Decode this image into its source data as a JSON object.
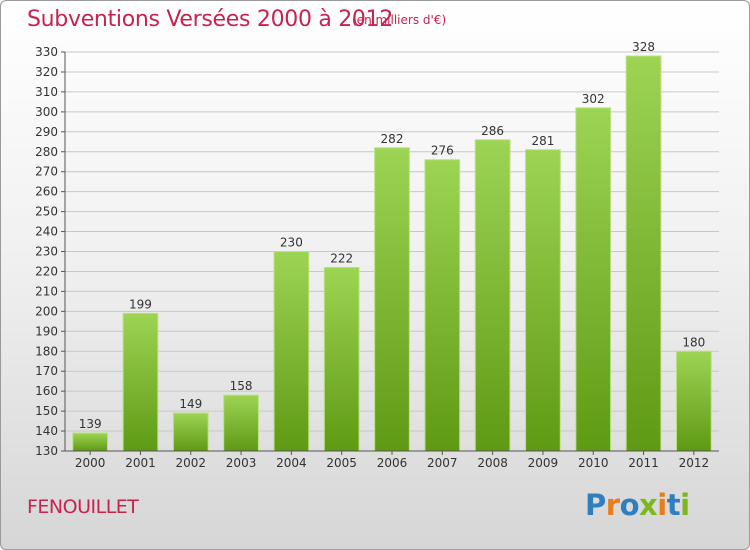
{
  "header": {
    "title": "Subventions Versées 2000 à 2012",
    "unit": "(en milliers d'€)"
  },
  "footer": {
    "commune": "FENOUILLET",
    "logo_text": "Proxiti"
  },
  "colors": {
    "title": "#c8224f",
    "bar_top": "#9dd454",
    "bar_bottom": "#5f9a14",
    "gridline": "#c8c8c8",
    "logo_letters": [
      "#2f7fc0",
      "#e77e1e",
      "#2f7fc0",
      "#7ab81e",
      "#e77e1e",
      "#2f7fc0",
      "#7ab81e"
    ]
  },
  "chart_data": {
    "type": "bar",
    "title": "Subventions Versées 2000 à 2012",
    "subtitle": "(en milliers d'€)",
    "categories": [
      "2000",
      "2001",
      "2002",
      "2003",
      "2004",
      "2005",
      "2006",
      "2007",
      "2008",
      "2009",
      "2010",
      "2011",
      "2012"
    ],
    "values": [
      139,
      199,
      149,
      158,
      230,
      222,
      282,
      276,
      286,
      281,
      302,
      328,
      180
    ],
    "ylim": [
      130,
      330
    ],
    "yticks": [
      130,
      140,
      150,
      160,
      170,
      180,
      190,
      200,
      210,
      220,
      230,
      240,
      250,
      260,
      270,
      280,
      290,
      300,
      310,
      320,
      330
    ],
    "grid": true,
    "xlabel": "",
    "ylabel": ""
  }
}
